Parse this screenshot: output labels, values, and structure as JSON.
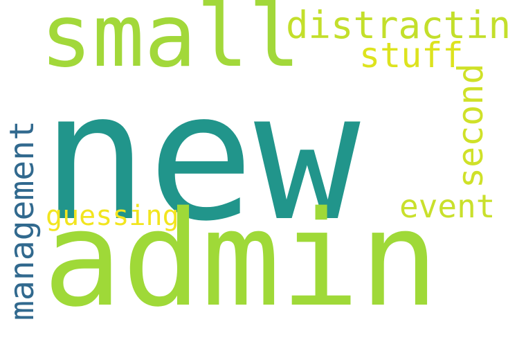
{
  "background": "#ffffff",
  "words": [
    {
      "text": "new",
      "color": "#21958b",
      "orientation": "horizontal"
    },
    {
      "text": "admin",
      "color": "#9fd938",
      "orientation": "horizontal"
    },
    {
      "text": "small",
      "color": "#a2d83a",
      "orientation": "horizontal"
    },
    {
      "text": "distracting",
      "color": "#c3df2b",
      "orientation": "horizontal"
    },
    {
      "text": "stuff",
      "color": "#dde31e",
      "orientation": "horizontal"
    },
    {
      "text": "second",
      "color": "#cfe128",
      "orientation": "vertical"
    },
    {
      "text": "event",
      "color": "#c9e02c",
      "orientation": "horizontal"
    },
    {
      "text": "guessing",
      "color": "#f2e51f",
      "orientation": "horizontal"
    },
    {
      "text": "management",
      "color": "#31698e",
      "orientation": "vertical"
    }
  ]
}
